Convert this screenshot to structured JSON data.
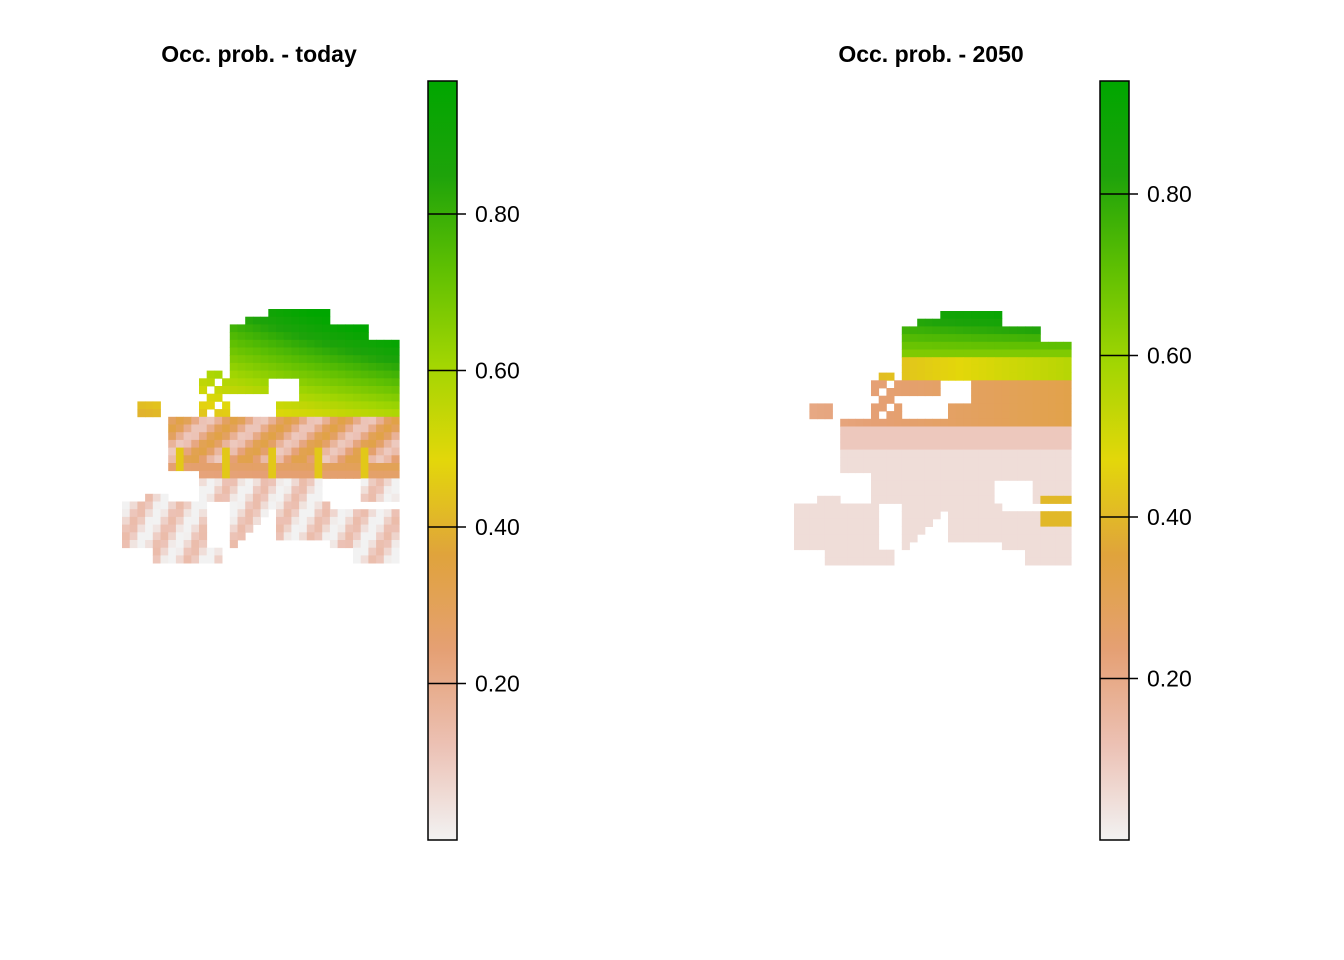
{
  "panels": [
    {
      "id": "today",
      "title": "Occ. prob. - today",
      "legend_range": [
        0,
        0.97
      ],
      "legend_ticks": [
        {
          "value": 0.2,
          "label": "0.20"
        },
        {
          "value": 0.4,
          "label": "0.40"
        },
        {
          "value": 0.6,
          "label": "0.60"
        },
        {
          "value": 0.8,
          "label": "0.80"
        }
      ]
    },
    {
      "id": "future",
      "title": "Occ. prob. - 2050",
      "legend_range": [
        0,
        0.94
      ],
      "legend_ticks": [
        {
          "value": 0.2,
          "label": "0.20"
        },
        {
          "value": 0.4,
          "label": "0.40"
        },
        {
          "value": 0.6,
          "label": "0.60"
        },
        {
          "value": 0.8,
          "label": "0.80"
        }
      ]
    }
  ],
  "color_scale": {
    "type": "terrain",
    "stops": [
      "#f2f2f2",
      "#ecc1b4",
      "#e5a074",
      "#e0a33c",
      "#e3d70a",
      "#a3d602",
      "#60c002",
      "#1ea30a",
      "#00a600"
    ]
  }
}
